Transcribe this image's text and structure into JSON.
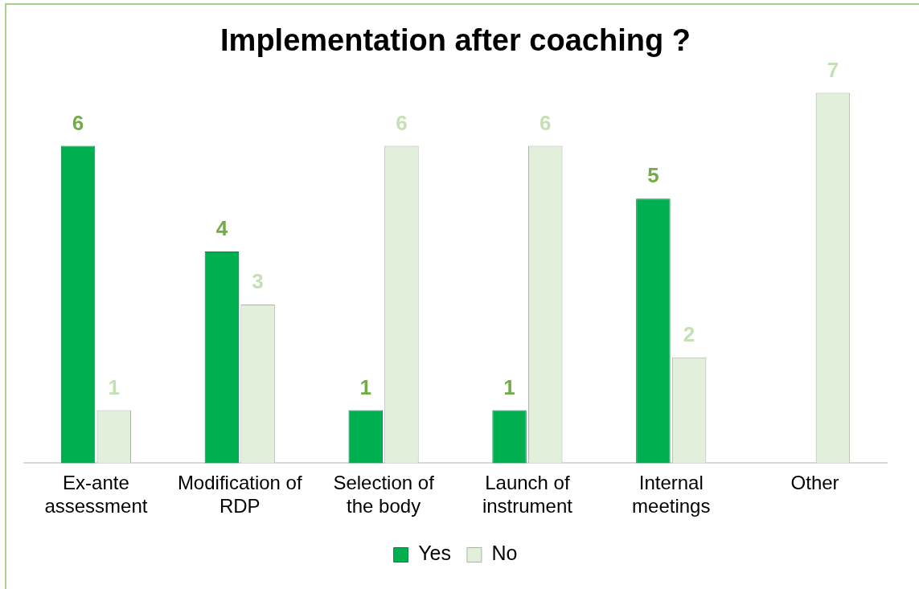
{
  "chart_data": {
    "type": "bar",
    "title": "Implementation after coaching ?",
    "categories": [
      "Ex-ante assessment",
      "Modification of RDP",
      "Selection of the body",
      "Launch of instrument",
      "Internal meetings",
      "Other"
    ],
    "series": [
      {
        "name": "Yes",
        "color": "#00b050",
        "values": [
          6,
          4,
          1,
          1,
          5,
          null
        ]
      },
      {
        "name": "No",
        "color": "#e2efda",
        "values": [
          1,
          3,
          6,
          6,
          2,
          7
        ]
      }
    ],
    "data_labels": true,
    "legend": "bottom",
    "grid": false
  }
}
